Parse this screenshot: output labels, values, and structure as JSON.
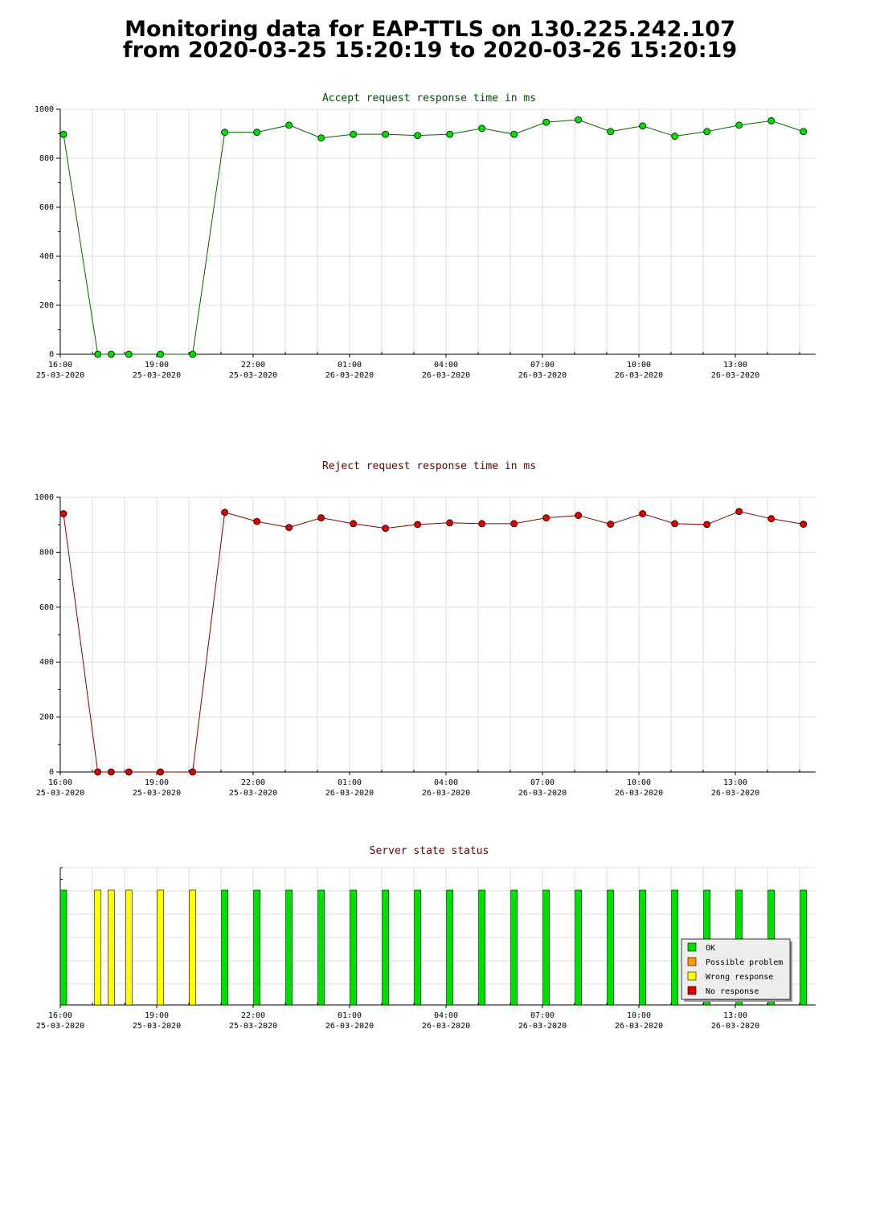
{
  "page": {
    "title_line1": "Monitoring data for EAP-TTLS on 130.225.242.107",
    "title_line2": "from 2020-03-25 15:20:19 to 2020-03-26 15:20:19"
  },
  "colors": {
    "accept_line": "#006400",
    "accept_marker": "#00e000",
    "reject_line": "#800000",
    "reject_marker": "#e00000",
    "ok": "#00e000",
    "possible_problem": "#ff9900",
    "wrong_response": "#ffff00",
    "no_response": "#e00000",
    "grid": "#dddddd",
    "title_green": "#004d00",
    "title_red": "#660000"
  },
  "chart_data": [
    {
      "type": "line",
      "title": "Accept request response time in ms",
      "xlabel": "",
      "ylabel": "",
      "ylim": [
        0,
        1000
      ],
      "yticks": [
        "0",
        "200",
        "400",
        "600",
        "800",
        "1000"
      ],
      "xticks": [
        {
          "time": "16:00",
          "date": "25-03-2020"
        },
        {
          "time": "19:00",
          "date": "25-03-2020"
        },
        {
          "time": "22:00",
          "date": "25-03-2020"
        },
        {
          "time": "01:00",
          "date": "26-03-2020"
        },
        {
          "time": "04:00",
          "date": "26-03-2020"
        },
        {
          "time": "07:00",
          "date": "26-03-2020"
        },
        {
          "time": "10:00",
          "date": "26-03-2020"
        },
        {
          "time": "13:00",
          "date": "26-03-2020"
        }
      ],
      "x": [
        "2020-03-25 16:06",
        "2020-03-25 17:10",
        "2020-03-25 17:35",
        "2020-03-25 18:08",
        "2020-03-25 19:07",
        "2020-03-25 20:07",
        "2020-03-25 21:07",
        "2020-03-25 22:07",
        "2020-03-25 23:07",
        "2020-03-26 00:07",
        "2020-03-26 01:07",
        "2020-03-26 02:07",
        "2020-03-26 03:07",
        "2020-03-26 04:07",
        "2020-03-26 05:07",
        "2020-03-26 06:07",
        "2020-03-26 07:07",
        "2020-03-26 08:07",
        "2020-03-26 09:07",
        "2020-03-26 10:07",
        "2020-03-26 11:07",
        "2020-03-26 12:07",
        "2020-03-26 13:07",
        "2020-03-26 14:07",
        "2020-03-26 15:07"
      ],
      "y": [
        898,
        0,
        0,
        0,
        0,
        0,
        906,
        906,
        935,
        883,
        898,
        898,
        893,
        898,
        922,
        898,
        947,
        957,
        909,
        932,
        890,
        909,
        935,
        953,
        909
      ],
      "grid": true
    },
    {
      "type": "line",
      "title": "Reject request response time in ms",
      "xlabel": "",
      "ylabel": "",
      "ylim": [
        0,
        1000
      ],
      "yticks": [
        "0",
        "200",
        "400",
        "600",
        "800",
        "1000"
      ],
      "xticks": [
        {
          "time": "16:00",
          "date": "25-03-2020"
        },
        {
          "time": "19:00",
          "date": "25-03-2020"
        },
        {
          "time": "22:00",
          "date": "25-03-2020"
        },
        {
          "time": "01:00",
          "date": "26-03-2020"
        },
        {
          "time": "04:00",
          "date": "26-03-2020"
        },
        {
          "time": "07:00",
          "date": "26-03-2020"
        },
        {
          "time": "10:00",
          "date": "26-03-2020"
        },
        {
          "time": "13:00",
          "date": "26-03-2020"
        }
      ],
      "x": [
        "2020-03-25 16:06",
        "2020-03-25 17:10",
        "2020-03-25 17:35",
        "2020-03-25 18:08",
        "2020-03-25 19:07",
        "2020-03-25 20:07",
        "2020-03-25 21:07",
        "2020-03-25 22:07",
        "2020-03-25 23:07",
        "2020-03-26 00:07",
        "2020-03-26 01:07",
        "2020-03-26 02:07",
        "2020-03-26 03:07",
        "2020-03-26 04:07",
        "2020-03-26 05:07",
        "2020-03-26 06:07",
        "2020-03-26 07:07",
        "2020-03-26 08:07",
        "2020-03-26 09:07",
        "2020-03-26 10:07",
        "2020-03-26 11:07",
        "2020-03-26 12:07",
        "2020-03-26 13:07",
        "2020-03-26 14:07",
        "2020-03-26 15:07"
      ],
      "y": [
        940,
        0,
        0,
        0,
        0,
        0,
        945,
        912,
        890,
        925,
        904,
        887,
        901,
        907,
        904,
        904,
        925,
        934,
        902,
        940,
        904,
        901,
        948,
        922,
        902
      ],
      "grid": true
    },
    {
      "type": "bar",
      "title": "Server state status",
      "xticks": [
        {
          "time": "16:00",
          "date": "25-03-2020"
        },
        {
          "time": "19:00",
          "date": "25-03-2020"
        },
        {
          "time": "22:00",
          "date": "25-03-2020"
        },
        {
          "time": "01:00",
          "date": "26-03-2020"
        },
        {
          "time": "04:00",
          "date": "26-03-2020"
        },
        {
          "time": "07:00",
          "date": "26-03-2020"
        },
        {
          "time": "10:00",
          "date": "26-03-2020"
        },
        {
          "time": "13:00",
          "date": "26-03-2020"
        }
      ],
      "x": [
        "2020-03-25 16:06",
        "2020-03-25 17:10",
        "2020-03-25 17:35",
        "2020-03-25 18:08",
        "2020-03-25 19:07",
        "2020-03-25 20:07",
        "2020-03-25 21:07",
        "2020-03-25 22:07",
        "2020-03-25 23:07",
        "2020-03-26 00:07",
        "2020-03-26 01:07",
        "2020-03-26 02:07",
        "2020-03-26 03:07",
        "2020-03-26 04:07",
        "2020-03-26 05:07",
        "2020-03-26 06:07",
        "2020-03-26 07:07",
        "2020-03-26 08:07",
        "2020-03-26 09:07",
        "2020-03-26 10:07",
        "2020-03-26 11:07",
        "2020-03-26 12:07",
        "2020-03-26 13:07",
        "2020-03-26 14:07",
        "2020-03-26 15:07"
      ],
      "status": [
        "ok",
        "wrong",
        "wrong",
        "wrong",
        "wrong",
        "wrong",
        "ok",
        "ok",
        "ok",
        "ok",
        "ok",
        "ok",
        "ok",
        "ok",
        "ok",
        "ok",
        "ok",
        "ok",
        "ok",
        "ok",
        "ok",
        "ok",
        "ok",
        "ok",
        "ok"
      ],
      "legend": [
        {
          "key": "ok",
          "label": "OK"
        },
        {
          "key": "possible",
          "label": "Possible problem"
        },
        {
          "key": "wrong",
          "label": "Wrong response"
        },
        {
          "key": "none",
          "label": "No response"
        }
      ],
      "legend_position": "bottom-right",
      "grid": true
    }
  ]
}
